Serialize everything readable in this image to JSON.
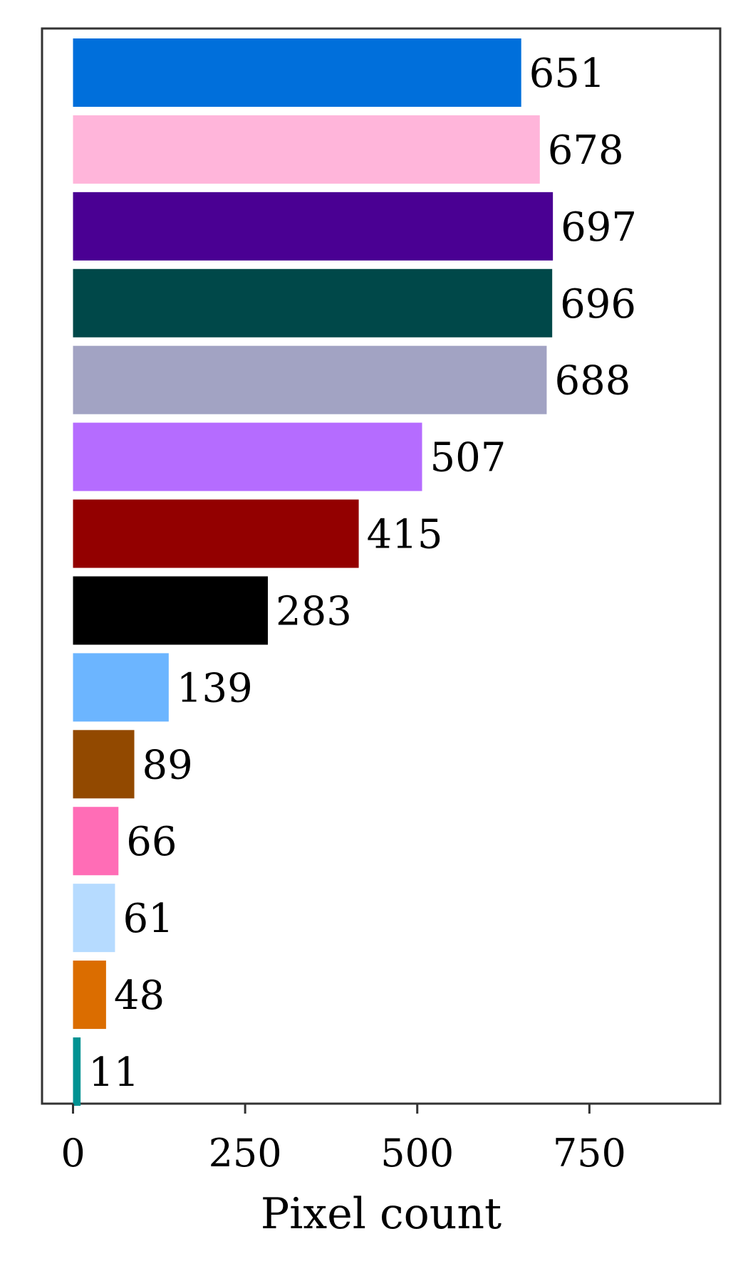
{
  "chart_data": {
    "type": "bar",
    "orientation": "horizontal",
    "values": [
      651,
      678,
      697,
      696,
      688,
      507,
      415,
      283,
      139,
      89,
      66,
      61,
      48,
      11
    ],
    "colors": [
      "#006fdb",
      "#ffb5da",
      "#4a0093",
      "#004849",
      "#a2a3c3",
      "#b56cff",
      "#930000",
      "#000000",
      "#6cb5ff",
      "#924900",
      "#ff6db6",
      "#b6dbff",
      "#db6d00",
      "#009292"
    ],
    "xlabel": "Pixel count",
    "ylabel": "",
    "xlim": [
      -45,
      940
    ],
    "xticks": [
      0,
      250,
      500,
      750
    ],
    "grid": false,
    "legend": "none"
  }
}
